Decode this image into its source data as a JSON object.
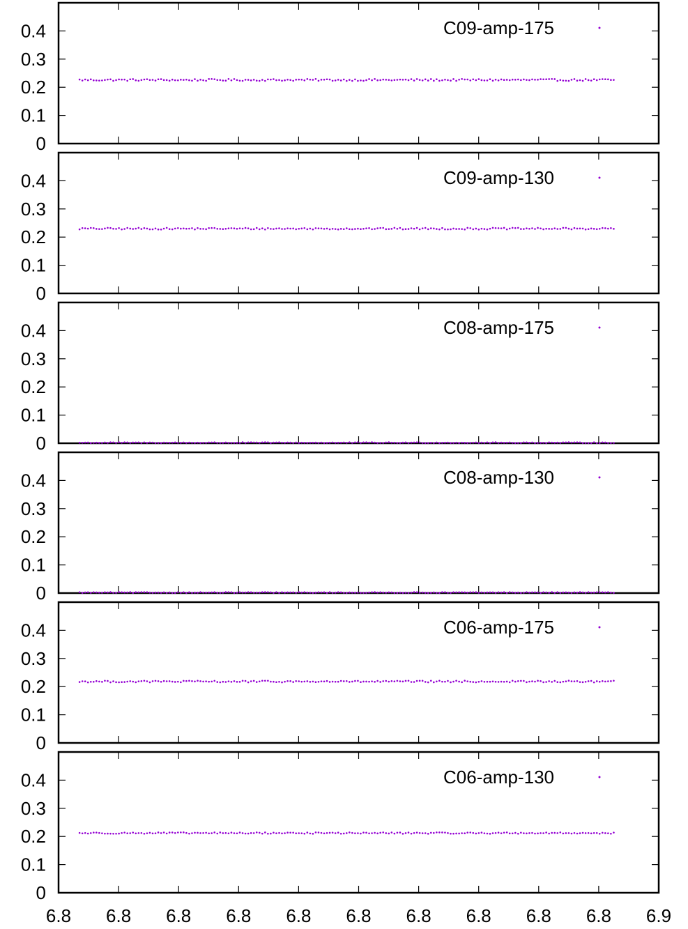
{
  "chart_data": {
    "type": "scatter",
    "layout": "stacked-panels",
    "shared_x": {
      "tick_labels": [
        "6.8",
        "6.8",
        "6.8",
        "6.8",
        "6.8",
        "6.8",
        "6.8",
        "6.8",
        "6.8",
        "6.8",
        "6.9"
      ],
      "label": ""
    },
    "y_tick_labels": [
      "0",
      "0.1",
      "0.2",
      "0.3",
      "0.4"
    ],
    "ylim": [
      0,
      0.5
    ],
    "legend_position": "top-right",
    "marker_color": "#9400d3",
    "x_points_start_frac": 0.035,
    "x_points_end_frac": 0.925,
    "panels": [
      {
        "name": "C09-amp-175",
        "mean": 0.226,
        "jitter": 0.0035,
        "n_points": 191
      },
      {
        "name": "C09-amp-130",
        "mean": 0.23,
        "jitter": 0.003,
        "n_points": 191
      },
      {
        "name": "C08-amp-175",
        "mean": 0.002,
        "jitter": 0.0015,
        "n_points": 191
      },
      {
        "name": "C08-amp-130",
        "mean": 0.002,
        "jitter": 0.0015,
        "n_points": 191
      },
      {
        "name": "C06-amp-175",
        "mean": 0.218,
        "jitter": 0.003,
        "n_points": 191
      },
      {
        "name": "C06-amp-130",
        "mean": 0.212,
        "jitter": 0.0025,
        "n_points": 191
      }
    ]
  }
}
